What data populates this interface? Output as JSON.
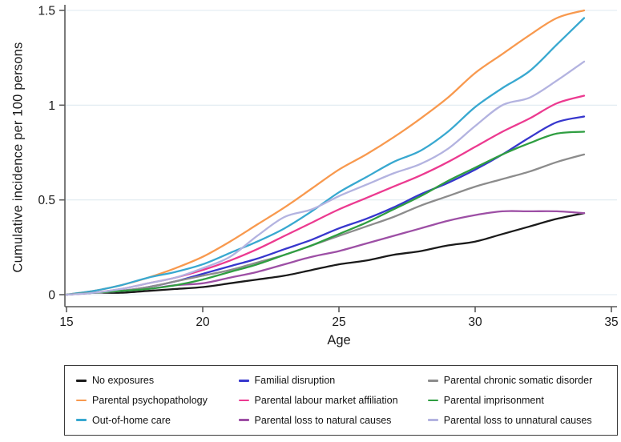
{
  "chart_data": {
    "type": "line",
    "title": "",
    "xlabel": "Age",
    "ylabel": "Cumulative incidence per 100 persons",
    "xlim": [
      15,
      35
    ],
    "ylim": [
      0,
      1.5
    ],
    "xticks": [
      15,
      20,
      25,
      30,
      35
    ],
    "yticks": [
      0,
      0.5,
      1,
      1.5
    ],
    "ytick_labels": [
      "0",
      "0.5",
      "1",
      "1.5"
    ],
    "grid": "horizontal",
    "gridline_color": "#dfeaf0",
    "axis_color": "#5a5a5a",
    "legend_position": "bottom-boxed",
    "x": [
      15,
      16,
      17,
      18,
      19,
      20,
      21,
      22,
      23,
      24,
      25,
      26,
      27,
      28,
      29,
      30,
      31,
      32,
      33,
      34
    ],
    "series": [
      {
        "name": "No exposures",
        "color": "#1a1a1a",
        "values": [
          0,
          0.01,
          0.01,
          0.02,
          0.03,
          0.04,
          0.06,
          0.08,
          0.1,
          0.13,
          0.16,
          0.18,
          0.21,
          0.23,
          0.26,
          0.28,
          0.32,
          0.36,
          0.4,
          0.43
        ]
      },
      {
        "name": "Parental psychopathology",
        "color": "#f8994e",
        "values": [
          0,
          0.02,
          0.05,
          0.09,
          0.14,
          0.2,
          0.28,
          0.37,
          0.46,
          0.56,
          0.66,
          0.74,
          0.83,
          0.93,
          1.04,
          1.17,
          1.27,
          1.37,
          1.46,
          1.5
        ]
      },
      {
        "name": "Out-of-home care",
        "color": "#38a8d0",
        "values": [
          0,
          0.02,
          0.05,
          0.09,
          0.12,
          0.16,
          0.22,
          0.28,
          0.35,
          0.44,
          0.54,
          0.62,
          0.7,
          0.76,
          0.86,
          0.99,
          1.09,
          1.18,
          1.32,
          1.46
        ]
      },
      {
        "name": "Familial disruption",
        "color": "#3737cd",
        "values": [
          0,
          0.01,
          0.02,
          0.04,
          0.07,
          0.11,
          0.15,
          0.19,
          0.24,
          0.29,
          0.35,
          0.4,
          0.46,
          0.53,
          0.59,
          0.66,
          0.74,
          0.83,
          0.91,
          0.94
        ]
      },
      {
        "name": "Parental labour market affiliation",
        "color": "#ec3a90",
        "values": [
          0,
          0.01,
          0.03,
          0.06,
          0.09,
          0.13,
          0.18,
          0.24,
          0.31,
          0.38,
          0.45,
          0.51,
          0.57,
          0.63,
          0.7,
          0.78,
          0.86,
          0.93,
          1.01,
          1.05
        ]
      },
      {
        "name": "Parental loss to natural causes",
        "color": "#9d4fa5",
        "values": [
          0,
          0.01,
          0.02,
          0.03,
          0.05,
          0.06,
          0.09,
          0.12,
          0.16,
          0.2,
          0.23,
          0.27,
          0.31,
          0.35,
          0.39,
          0.42,
          0.44,
          0.44,
          0.44,
          0.43
        ]
      },
      {
        "name": "Parental chronic somatic disorder",
        "color": "#8c8c8c",
        "values": [
          0,
          0.01,
          0.02,
          0.04,
          0.07,
          0.1,
          0.13,
          0.17,
          0.21,
          0.26,
          0.31,
          0.36,
          0.41,
          0.47,
          0.52,
          0.57,
          0.61,
          0.65,
          0.7,
          0.74
        ]
      },
      {
        "name": "Parental imprisonment",
        "color": "#2f9e41",
        "values": [
          0,
          0.01,
          0.02,
          0.03,
          0.05,
          0.08,
          0.12,
          0.16,
          0.21,
          0.26,
          0.32,
          0.38,
          0.45,
          0.52,
          0.6,
          0.67,
          0.74,
          0.8,
          0.85,
          0.86
        ]
      },
      {
        "name": "Parental loss to unnatural causes",
        "color": "#b3b3e0",
        "values": [
          0,
          0.01,
          0.03,
          0.06,
          0.09,
          0.14,
          0.2,
          0.31,
          0.41,
          0.45,
          0.52,
          0.58,
          0.64,
          0.69,
          0.77,
          0.89,
          1.0,
          1.04,
          1.13,
          1.23
        ]
      }
    ],
    "legend_columns": [
      [
        0,
        1,
        2
      ],
      [
        3,
        4,
        5
      ],
      [
        6,
        7,
        8
      ]
    ]
  }
}
